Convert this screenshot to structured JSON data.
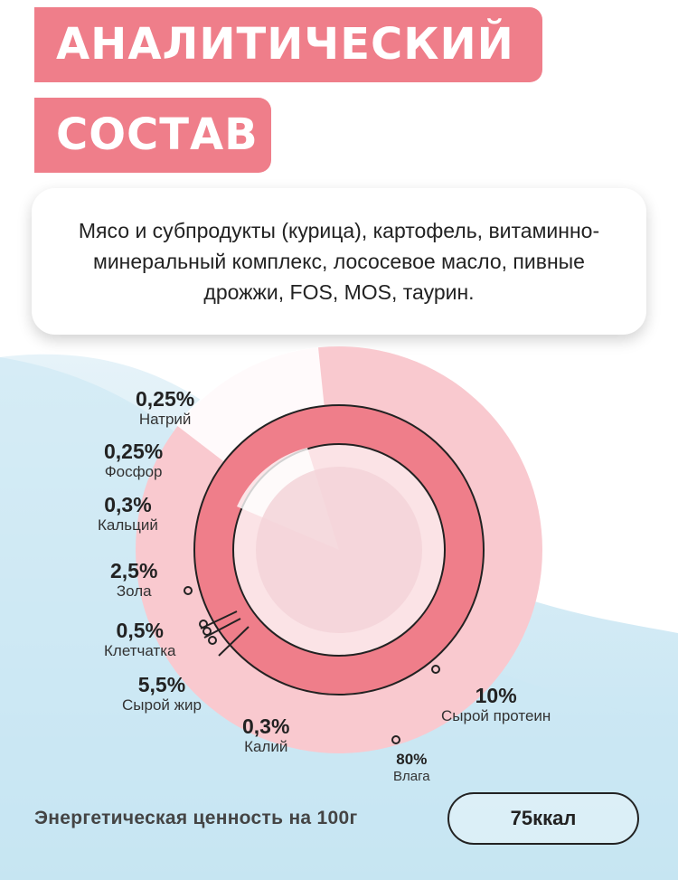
{
  "title": {
    "line1": "АНАЛИТИЧЕСКИЙ",
    "line2": "СОСТАВ"
  },
  "ingredients": "Мясо и субпродукты (курица), картофель, витаминно-минеральный комплекс, лососевое масло, пивные дрожжи, FOS, MOS, таурин.",
  "composition": [
    {
      "value": "0,25%",
      "name": "Натрий"
    },
    {
      "value": "0,25%",
      "name": "Фосфор"
    },
    {
      "value": "0,3%",
      "name": "Кальций"
    },
    {
      "value": "2,5%",
      "name": "Зола"
    },
    {
      "value": "0,5%",
      "name": "Клетчатка"
    },
    {
      "value": "5,5%",
      "name": "Сырой жир"
    },
    {
      "value": "0,3%",
      "name": "Калий"
    },
    {
      "value": "10%",
      "name": "Сырой протеин"
    },
    {
      "value": "80%",
      "name": "Влага"
    }
  ],
  "energy": {
    "label": "Энергетическая ценность на 100г",
    "value": "75ккал"
  },
  "colors": {
    "accent": "#ef7e8a",
    "ring": "#ef7e8a",
    "outer": "#f9c9cf",
    "bg_blue": "#cfe8f3"
  }
}
